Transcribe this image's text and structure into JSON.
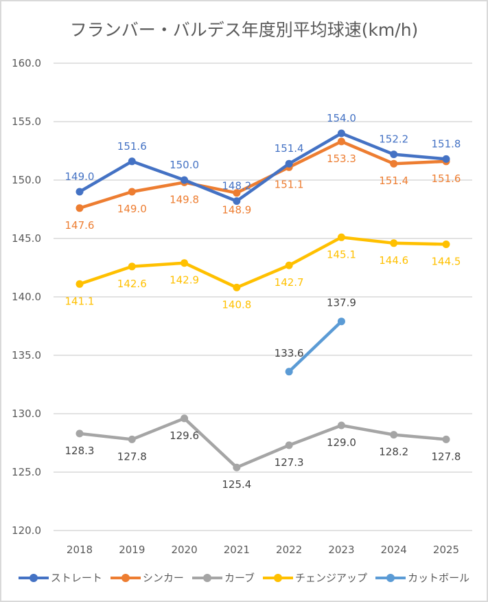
{
  "chart_data": {
    "type": "line",
    "title": "フランバー・バルデス年度別平均球速(km/h)",
    "xlabel": "",
    "ylabel": "",
    "categories": [
      "2018",
      "2019",
      "2020",
      "2021",
      "2022",
      "2023",
      "2024",
      "2025"
    ],
    "ylim": [
      120,
      160
    ],
    "yticks": [
      "160.0",
      "155.0",
      "150.0",
      "145.0",
      "140.0",
      "135.0",
      "130.0",
      "125.0",
      "120.0"
    ],
    "ytick_values": [
      160,
      155,
      150,
      145,
      140,
      135,
      130,
      125,
      120
    ],
    "grid": true,
    "legend_position": "bottom",
    "series": [
      {
        "name": "ストレート",
        "color": "#4472c4",
        "label_color": "#4472c4",
        "label_pos": "above",
        "values": [
          149.0,
          151.6,
          150.0,
          148.2,
          151.4,
          154.0,
          152.2,
          151.8
        ],
        "labels": [
          "149.0",
          "151.6",
          "150.0",
          "148.2",
          "151.4",
          "154.0",
          "152.2",
          "151.8"
        ]
      },
      {
        "name": "シンカー",
        "color": "#ed7d31",
        "label_color": "#ed7d31",
        "label_pos": "below",
        "values": [
          147.6,
          149.0,
          149.8,
          148.9,
          151.1,
          153.3,
          151.4,
          151.6
        ],
        "labels": [
          "147.6",
          "149.0",
          "149.8",
          "148.9",
          "151.1",
          "153.3",
          "151.4",
          "151.6"
        ]
      },
      {
        "name": "カーブ",
        "color": "#a5a5a5",
        "label_color": "#404040",
        "label_pos": "below",
        "values": [
          128.3,
          127.8,
          129.6,
          125.4,
          127.3,
          129.0,
          128.2,
          127.8
        ],
        "labels": [
          "128.3",
          "127.8",
          "129.6",
          "125.4",
          "127.3",
          "129.0",
          "128.2",
          "127.8"
        ]
      },
      {
        "name": "チェンジアップ",
        "color": "#ffc000",
        "label_color": "#ffc000",
        "label_pos": "below",
        "values": [
          141.1,
          142.6,
          142.9,
          140.8,
          142.7,
          145.1,
          144.6,
          144.5
        ],
        "labels": [
          "141.1",
          "142.6",
          "142.9",
          "140.8",
          "142.7",
          "145.1",
          "144.6",
          "144.5"
        ]
      },
      {
        "name": "カットボール",
        "color": "#5b9bd5",
        "label_color": "#404040",
        "label_pos": "above",
        "values": [
          null,
          null,
          null,
          null,
          133.6,
          137.9,
          null,
          null
        ],
        "labels": [
          null,
          null,
          null,
          null,
          "133.6",
          "137.9",
          null,
          null
        ]
      }
    ]
  }
}
